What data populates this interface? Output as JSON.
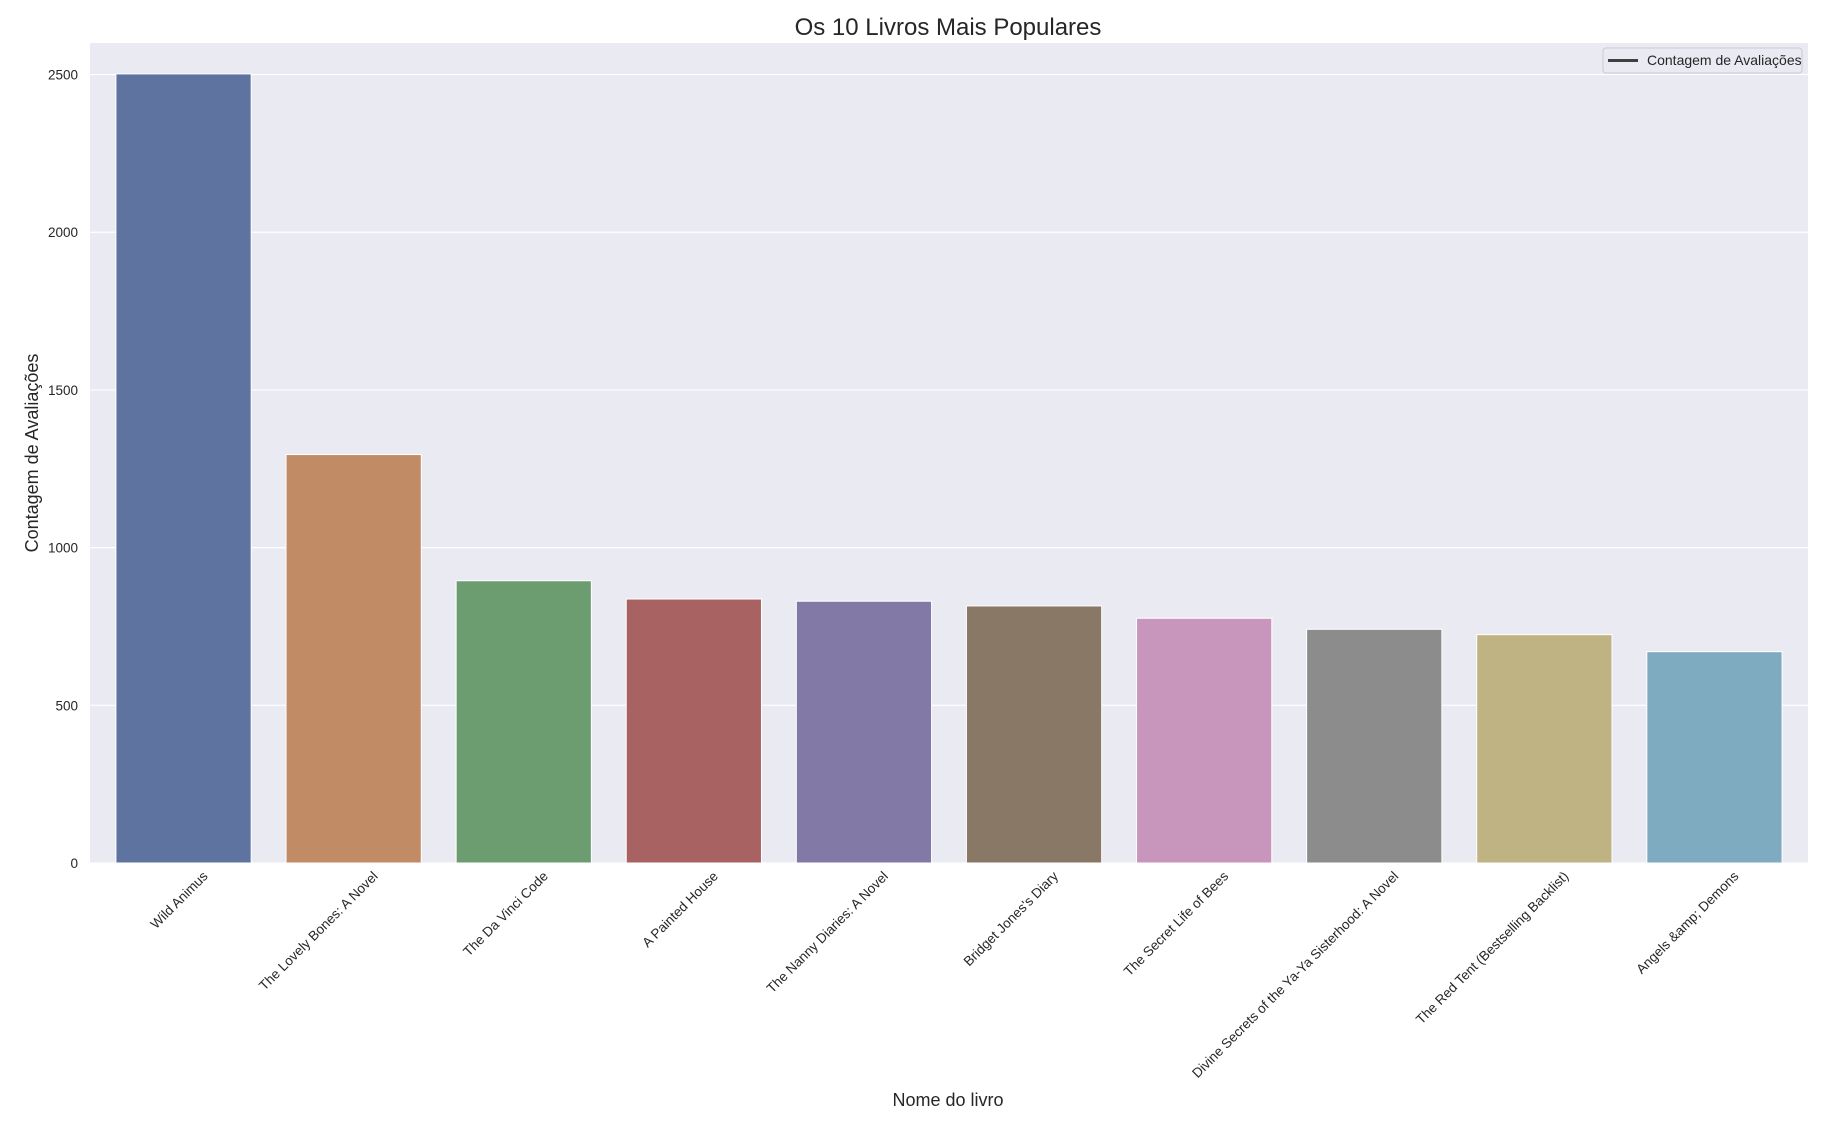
{
  "chart_data": {
    "type": "bar",
    "title": "Os 10 Livros Mais Populares",
    "xlabel": "Nome do livro",
    "ylabel": "Contagem de Avaliações",
    "categories": [
      "Wild Animus",
      "The Lovely Bones: A Novel",
      "The Da Vinci Code",
      "A Painted House",
      "The Nanny Diaries: A Novel",
      "Bridget Jones's Diary",
      "The Secret Life of Bees",
      "Divine Secrets of the Ya-Ya Sisterhood: A Novel",
      "The Red Tent (Bestselling Backlist)",
      "Angels &amp; Demons"
    ],
    "values": [
      2502,
      1295,
      895,
      837,
      830,
      815,
      776,
      741,
      724,
      670
    ],
    "colors": [
      "#5f73a0",
      "#c18b66",
      "#6c9d70",
      "#a86261",
      "#8379a6",
      "#8a7867",
      "#c896bd",
      "#8c8c8c",
      "#bfb283",
      "#7eabbf"
    ],
    "ylim": [
      0,
      2600
    ],
    "yticks": [
      "0",
      "500",
      "1000",
      "1500",
      "2000",
      "2500"
    ],
    "grid": true,
    "legend": {
      "placement": "top-right",
      "entries": [
        "Contagem de Avaliações"
      ]
    },
    "style": {
      "plot_bg": "#eaeaf2",
      "grid_color": "#ffffff",
      "text_color": "#262626",
      "legend_line_color": "#3f3f3f"
    }
  }
}
